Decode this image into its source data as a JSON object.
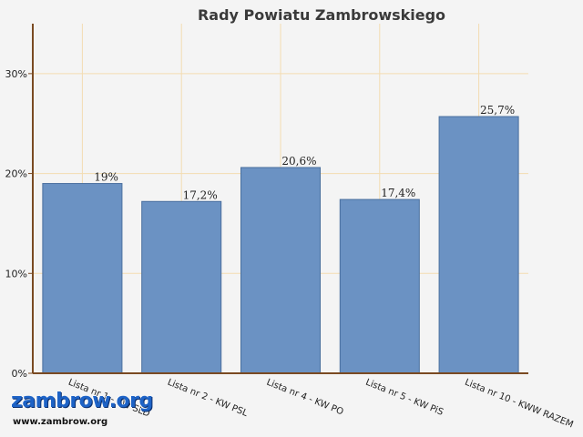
{
  "colors": {
    "background": "#f4f4f4",
    "bar_fill": "#6b92c3",
    "bar_stroke": "#4a6f9e",
    "grid": "#f3dcb1",
    "axis": "#7a4a22",
    "title": "#3a3a3a",
    "text": "#222222"
  },
  "logo": {
    "text": "zambrow.org",
    "url": "www.zambrow.org"
  },
  "chart_data": {
    "type": "bar",
    "title": "Rady Powiatu Zambrowskiego",
    "xlabel": "",
    "ylabel": "",
    "ylim": [
      0,
      35
    ],
    "yticks": [
      0,
      10,
      20,
      30
    ],
    "ytick_labels": [
      "0%",
      "10%",
      "20%",
      "30%"
    ],
    "grid": true,
    "legend": "none",
    "categories": [
      "Lista nr 1 - KW SLD",
      "Lista nr 2 - KW PSL",
      "Lista nr 4 - KW PO",
      "Lista nr 5 - KW PiS",
      "Lista nr 10 - KWW RAZEM"
    ],
    "values": [
      19,
      17.2,
      20.6,
      17.4,
      25.7
    ],
    "data_labels": [
      "19%",
      "17,2%",
      "20,6%",
      "17,4%",
      "25,7%"
    ]
  }
}
